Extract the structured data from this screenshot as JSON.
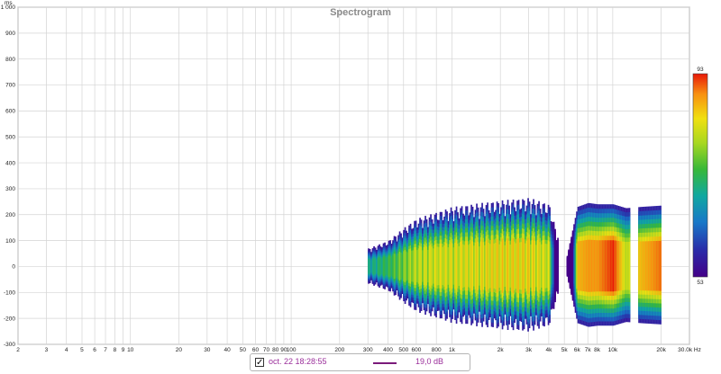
{
  "chart_data": {
    "type": "heatmap",
    "title": "Spectrogram",
    "xlabel": "",
    "ylabel": "",
    "x_unit": "Hz",
    "y_unit": "ms",
    "x_scale": "log",
    "xlim": [
      2,
      30000
    ],
    "ylim": [
      -300,
      1000
    ],
    "grid": true,
    "x_ticks": [
      2,
      3,
      4,
      5,
      6,
      7,
      8,
      9,
      10,
      20,
      30,
      40,
      50,
      60,
      70,
      80,
      90,
      100,
      200,
      300,
      400,
      500,
      600,
      800,
      1000,
      2000,
      3000,
      4000,
      5000,
      6000,
      7000,
      8000,
      10000,
      20000,
      30000
    ],
    "x_tick_labels": [
      "2",
      "3",
      "4",
      "5",
      "6",
      "7",
      "8",
      "9",
      "10",
      "20",
      "30",
      "40",
      "50",
      "60",
      "70",
      "80",
      "90",
      "100",
      "200",
      "300",
      "400",
      "500",
      "600",
      "800",
      "1k",
      "2k",
      "3k",
      "4k",
      "5k",
      "6k",
      "7k",
      "8k",
      "10k",
      "20k",
      "30.0k Hz"
    ],
    "y_ticks": [
      -300,
      -200,
      -100,
      0,
      100,
      200,
      300,
      400,
      500,
      600,
      700,
      800,
      900,
      1000
    ],
    "y_tick_labels": [
      "-300",
      "-200",
      "-100",
      "0",
      "100",
      "200",
      "300",
      "400",
      "500",
      "600",
      "700",
      "800",
      "900",
      "1 000"
    ],
    "colorbar": {
      "min": 53,
      "max": 93,
      "min_label": "53",
      "max_label": "93"
    },
    "series": [
      {
        "freq_hz": [
          300,
          400,
          500,
          600,
          800,
          1000,
          1500,
          2000,
          3000,
          4000,
          5000,
          6000,
          7000,
          8000,
          10000,
          12000,
          15000,
          20000
        ],
        "half_extent_ms": [
          70,
          100,
          150,
          185,
          210,
          230,
          245,
          255,
          265,
          240,
          0,
          230,
          245,
          240,
          240,
          225,
          230,
          235
        ],
        "peak_db": [
          70,
          74,
          78,
          82,
          84,
          84,
          85,
          86,
          86,
          83,
          0,
          86,
          88,
          88,
          93,
          80,
          86,
          90
        ]
      }
    ]
  },
  "legend": {
    "checked": "✓",
    "date": "oct. 22 18:28:55",
    "value": "19,0 dB",
    "line_color": "#7a1a7a"
  },
  "colors": {
    "grid": "#d4d4d4",
    "axis": "#555555",
    "colormap": [
      "#440088",
      "#2a2aa8",
      "#1878c8",
      "#10a8a0",
      "#38b838",
      "#a8d820",
      "#f0e010",
      "#f89010",
      "#e81808"
    ]
  }
}
